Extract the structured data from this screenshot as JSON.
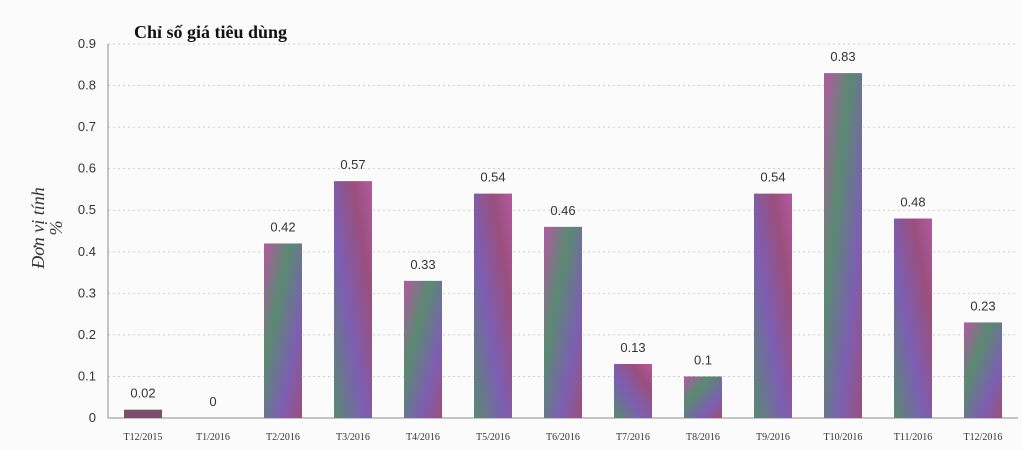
{
  "chart_data": {
    "type": "bar",
    "title": "Chỉ số giá tiêu dùng",
    "ylabel": "Đơn vị tính\n%",
    "xlabel": "",
    "ylim": [
      0,
      0.9
    ],
    "yticks": [
      0,
      0.1,
      0.2,
      0.3,
      0.4,
      0.5,
      0.6,
      0.7,
      0.8,
      0.9
    ],
    "grid": true,
    "categories": [
      "T12/2015",
      "T1/2016",
      "T2/2016",
      "T3/2016",
      "T4/2016",
      "T5/2016",
      "T6/2016",
      "T7/2016",
      "T8/2016",
      "T9/2016",
      "T10/2016",
      "T11/2016",
      "T12/2016"
    ],
    "values": [
      0.02,
      0,
      0.42,
      0.57,
      0.33,
      0.54,
      0.46,
      0.13,
      0.1,
      0.54,
      0.83,
      0.48,
      0.23
    ],
    "value_labels": [
      "0.02",
      "0",
      "0.42",
      "0.57",
      "0.33",
      "0.54",
      "0.46",
      "0.13",
      "0.1",
      "0.54",
      "0.83",
      "0.48",
      "0.23"
    ],
    "colors": {
      "bar_stops": [
        "#b25aa0",
        "#5a8a72",
        "#7c5fb2",
        "#9a4f7d"
      ],
      "small_bar": "#7a4f6b"
    }
  }
}
